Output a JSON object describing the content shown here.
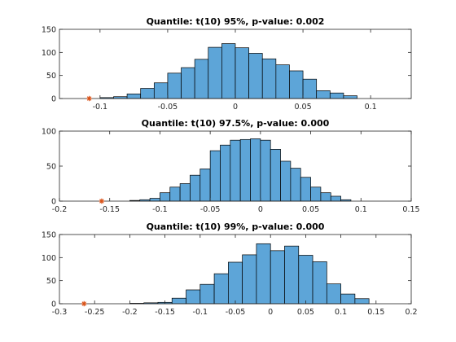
{
  "chart_data": [
    {
      "type": "histogram",
      "title": "Quantile: t(10) 95%, p-value: 0.002",
      "xlim": [
        -0.13,
        0.13
      ],
      "ylim": [
        0,
        150
      ],
      "xticks": [
        -0.1,
        -0.05,
        0,
        0.05,
        0.1
      ],
      "xtick_labels": [
        "-0.1",
        "-0.05",
        "0",
        "0.05",
        "0.1"
      ],
      "yticks": [
        0,
        50,
        100,
        150
      ],
      "ytick_labels": [
        "0",
        "50",
        "100",
        "150"
      ],
      "bin_start": -0.1,
      "bin_width": 0.01,
      "counts": [
        2,
        4,
        10,
        22,
        34,
        55,
        67,
        85,
        111,
        119,
        110,
        98,
        86,
        73,
        60,
        42,
        17,
        12,
        6
      ],
      "marker": {
        "x": -0.108,
        "y": 0
      },
      "bar_color": "#5da5d8",
      "marker_color": "#d95319"
    },
    {
      "type": "histogram",
      "title": "Quantile: t(10) 97.5%, p-value: 0.000",
      "xlim": [
        -0.2,
        0.15
      ],
      "ylim": [
        0,
        100
      ],
      "xticks": [
        -0.2,
        -0.15,
        -0.1,
        -0.05,
        0,
        0.05,
        0.1,
        0.15
      ],
      "xtick_labels": [
        "-0.2",
        "-0.15",
        "-0.1",
        "-0.05",
        "0",
        "0.05",
        "0.1",
        "0.15"
      ],
      "yticks": [
        0,
        50,
        100
      ],
      "ytick_labels": [
        "0",
        "50",
        "100"
      ],
      "bin_start": -0.13,
      "bin_width": 0.01,
      "counts": [
        1,
        2,
        4,
        12,
        20,
        25,
        37,
        46,
        72,
        80,
        87,
        88,
        89,
        87,
        74,
        57,
        47,
        34,
        20,
        12,
        7,
        2
      ],
      "marker": {
        "x": -0.158,
        "y": 0
      },
      "bar_color": "#5da5d8",
      "marker_color": "#d95319"
    },
    {
      "type": "histogram",
      "title": "Quantile: t(10) 99%, p-value: 0.000",
      "xlim": [
        -0.3,
        0.2
      ],
      "ylim": [
        0,
        150
      ],
      "xticks": [
        -0.3,
        -0.25,
        -0.2,
        -0.15,
        -0.1,
        -0.05,
        0,
        0.05,
        0.1,
        0.15,
        0.2
      ],
      "xtick_labels": [
        "-0.3",
        "-0.25",
        "-0.2",
        "-0.15",
        "-0.1",
        "-0.05",
        "0",
        "0.05",
        "0.1",
        "0.15",
        "0.2"
      ],
      "yticks": [
        0,
        50,
        100,
        150
      ],
      "ytick_labels": [
        "0",
        "50",
        "100",
        "150"
      ],
      "bin_start": -0.2,
      "bin_width": 0.02,
      "counts": [
        1,
        2,
        3,
        12,
        30,
        42,
        65,
        90,
        106,
        130,
        115,
        125,
        105,
        91,
        43,
        21,
        11
      ],
      "marker": {
        "x": -0.265,
        "y": 0
      },
      "bar_color": "#5da5d8",
      "marker_color": "#d95319"
    }
  ]
}
